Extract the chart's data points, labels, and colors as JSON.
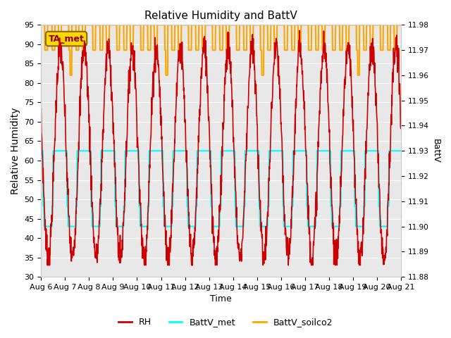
{
  "title": "Relative Humidity and BattV",
  "xlabel": "Time",
  "ylabel_left": "Relative Humidity",
  "ylabel_right": "BattV",
  "ylim_left": [
    30,
    95
  ],
  "ylim_right": [
    11.88,
    11.98
  ],
  "bg_color": "#e8e8e8",
  "annotation_text": "TA_met",
  "annotation_color": "#8B0000",
  "annotation_bg": "#FFD700",
  "xtick_labels": [
    "Aug 6",
    "Aug 7",
    "Aug 8",
    "Aug 9",
    "Aug 10",
    "Aug 11",
    "Aug 12",
    "Aug 13",
    "Aug 14",
    "Aug 15",
    "Aug 16",
    "Aug 17",
    "Aug 18",
    "Aug 19",
    "Aug 20",
    "Aug 21"
  ],
  "rh_color": "#cc0000",
  "battv_met_color": "cyan",
  "battv_soilco2_color": "orange",
  "yticks_left": [
    30,
    35,
    40,
    45,
    50,
    55,
    60,
    65,
    70,
    75,
    80,
    85,
    90,
    95
  ],
  "yticks_right": [
    11.88,
    11.89,
    11.9,
    11.91,
    11.92,
    11.93,
    11.94,
    11.95,
    11.96,
    11.97,
    11.98
  ]
}
